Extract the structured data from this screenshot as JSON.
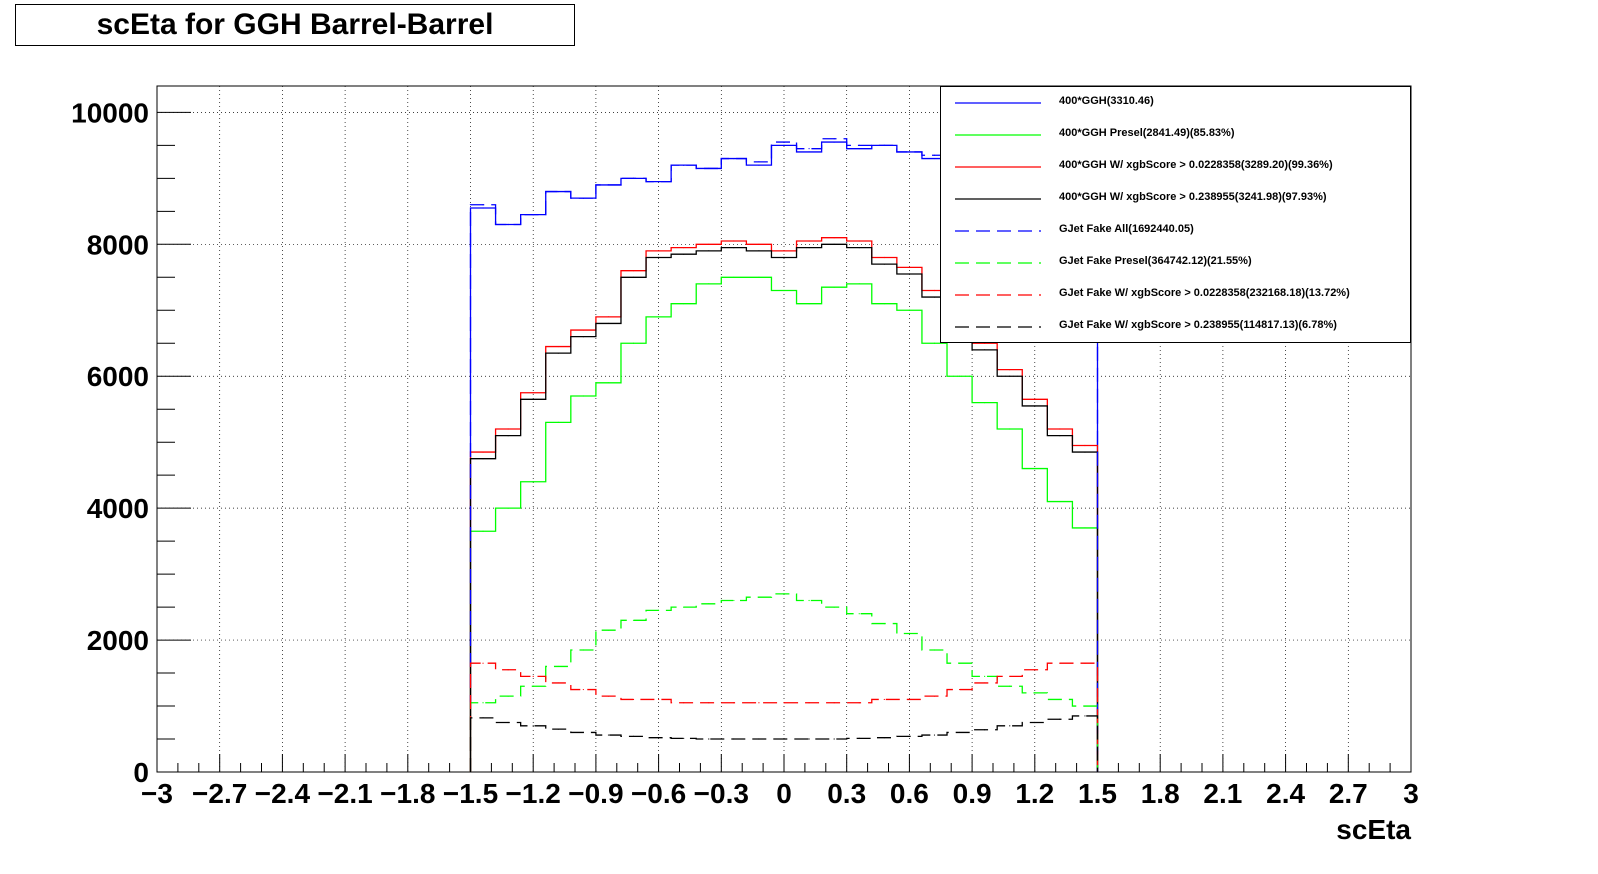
{
  "chart_data": {
    "type": "line",
    "title": "scEta for GGH Barrel-Barrel",
    "xlabel": "scEta",
    "ylabel": "",
    "xlim": [
      -3,
      3
    ],
    "ylim": [
      0,
      10400
    ],
    "grid": true,
    "legend_position": "top-right",
    "x_tick_labels": [
      "−3",
      "−2.7",
      "−2.4",
      "−2.1",
      "−1.8",
      "−1.5",
      "−1.2",
      "−0.9",
      "−0.6",
      "−0.3",
      "0",
      "0.3",
      "0.6",
      "0.9",
      "1.2",
      "1.5",
      "1.8",
      "2.1",
      "2.4",
      "2.7",
      "3"
    ],
    "x_ticks": [
      -3,
      -2.7,
      -2.4,
      -2.1,
      -1.8,
      -1.5,
      -1.2,
      -0.9,
      -0.6,
      -0.3,
      0,
      0.3,
      0.6,
      0.9,
      1.2,
      1.5,
      1.8,
      2.1,
      2.4,
      2.7,
      3
    ],
    "y_tick_labels": [
      "0",
      "2000",
      "4000",
      "6000",
      "8000",
      "10000"
    ],
    "y_ticks": [
      0,
      2000,
      4000,
      6000,
      8000,
      10000
    ],
    "x": [
      -1.44,
      -1.32,
      -1.2,
      -1.08,
      -0.96,
      -0.84,
      -0.72,
      -0.6,
      -0.48,
      -0.36,
      -0.24,
      -0.12,
      0.0,
      0.12,
      0.24,
      0.36,
      0.48,
      0.6,
      0.72,
      0.84,
      0.96,
      1.08,
      1.2,
      1.32,
      1.44
    ],
    "series": [
      {
        "name": "400*GGH(3310.46)",
        "color": "#0000ff",
        "dash": "solid",
        "values": [
          8550,
          8300,
          8450,
          8800,
          8700,
          8900,
          9000,
          8950,
          9200,
          9150,
          9300,
          9200,
          9500,
          9400,
          9550,
          9450,
          9500,
          9400,
          9300,
          9200,
          9100,
          9000,
          8900,
          8800,
          8700
        ]
      },
      {
        "name": "400*GGH Presel(2841.49)(85.83%)",
        "color": "#00ff00",
        "dash": "solid",
        "values": [
          3650,
          4000,
          4400,
          5300,
          5700,
          5900,
          6500,
          6900,
          7100,
          7400,
          7500,
          7500,
          7300,
          7100,
          7350,
          7400,
          7100,
          7000,
          6500,
          6000,
          5600,
          5200,
          4600,
          4100,
          3700
        ]
      },
      {
        "name": "400*GGH W/ xgbScore > 0.0228358(3289.20)(99.36%)",
        "color": "#ff0000",
        "dash": "solid",
        "values": [
          4850,
          5200,
          5750,
          6450,
          6700,
          6900,
          7600,
          7900,
          7950,
          8000,
          8050,
          8000,
          7900,
          8050,
          8100,
          8050,
          7800,
          7650,
          7300,
          6800,
          6500,
          6100,
          5650,
          5200,
          4950
        ]
      },
      {
        "name": "400*GGH W/ xgbScore > 0.238955(3241.98)(97.93%)",
        "color": "#000000",
        "dash": "solid",
        "values": [
          4750,
          5100,
          5650,
          6350,
          6600,
          6800,
          7500,
          7800,
          7850,
          7900,
          7950,
          7900,
          7800,
          7950,
          8000,
          7950,
          7700,
          7550,
          7200,
          6700,
          6400,
          6000,
          5550,
          5100,
          4850
        ]
      },
      {
        "name": "GJet Fake All(1692440.05)",
        "color": "#0000ff",
        "dash": "long-dash",
        "values": [
          8600,
          8300,
          8450,
          8800,
          8700,
          8900,
          9000,
          8950,
          9200,
          9150,
          9300,
          9250,
          9550,
          9450,
          9600,
          9500,
          9500,
          9400,
          9350,
          9250,
          9150,
          9050,
          8950,
          8850,
          8750
        ]
      },
      {
        "name": "GJet Fake Presel(364742.12)(21.55%)",
        "color": "#00ff00",
        "dash": "long-dash",
        "values": [
          1050,
          1150,
          1300,
          1600,
          1850,
          2150,
          2300,
          2450,
          2500,
          2550,
          2600,
          2650,
          2700,
          2600,
          2500,
          2400,
          2250,
          2100,
          1850,
          1650,
          1450,
          1300,
          1200,
          1100,
          1000
        ]
      },
      {
        "name": "GJet Fake W/ xgbScore > 0.0228358(232168.18)(13.72%)",
        "color": "#ff0000",
        "dash": "long-dash",
        "values": [
          1650,
          1550,
          1450,
          1350,
          1250,
          1150,
          1100,
          1100,
          1050,
          1050,
          1050,
          1050,
          1050,
          1050,
          1050,
          1050,
          1100,
          1100,
          1150,
          1250,
          1350,
          1450,
          1550,
          1650,
          1650
        ]
      },
      {
        "name": "GJet Fake W/ xgbScore > 0.238955(114817.13)(6.78%)",
        "color": "#000000",
        "dash": "long-dash",
        "values": [
          820,
          750,
          700,
          650,
          600,
          560,
          540,
          520,
          510,
          500,
          500,
          500,
          500,
          500,
          500,
          510,
          520,
          540,
          560,
          600,
          640,
          700,
          750,
          800,
          850
        ]
      }
    ]
  }
}
